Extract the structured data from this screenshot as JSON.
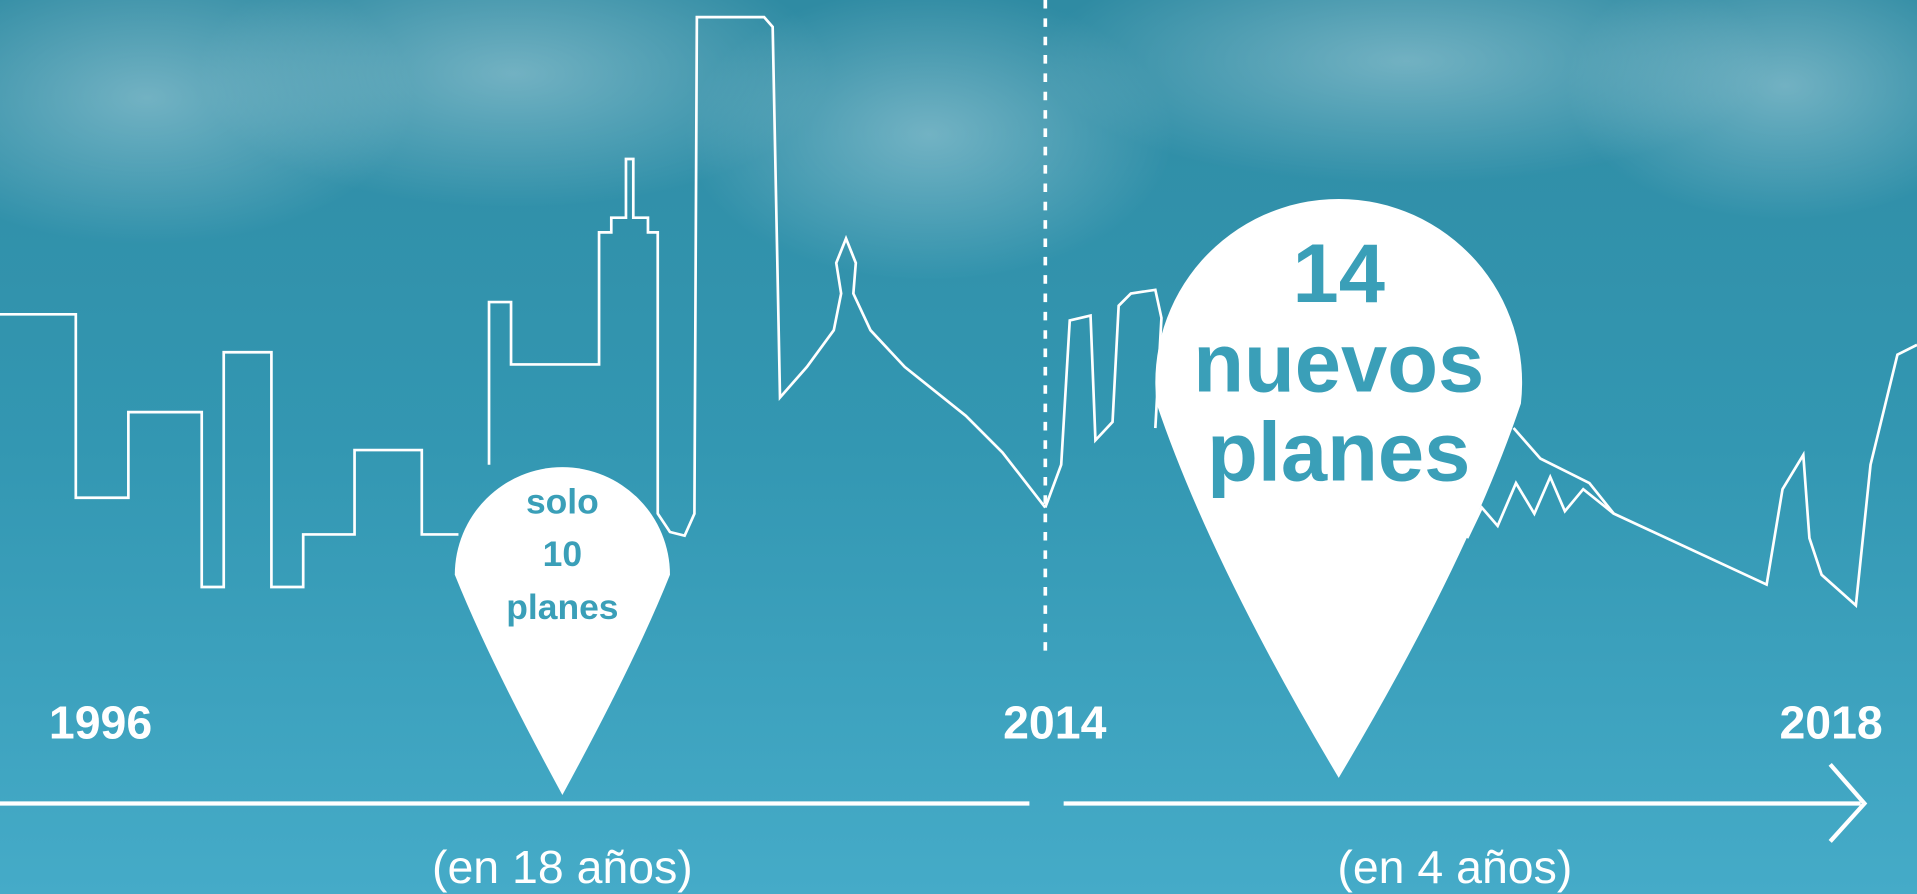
{
  "timeline": {
    "years": [
      "1996",
      "2014",
      "2018"
    ],
    "periods": [
      "(en 18 años)",
      "(en 4 años)"
    ]
  },
  "callouts": [
    {
      "lines": [
        "solo",
        "10",
        "planes"
      ]
    },
    {
      "lines": [
        "14",
        "nuevos",
        "planes"
      ]
    }
  ]
}
